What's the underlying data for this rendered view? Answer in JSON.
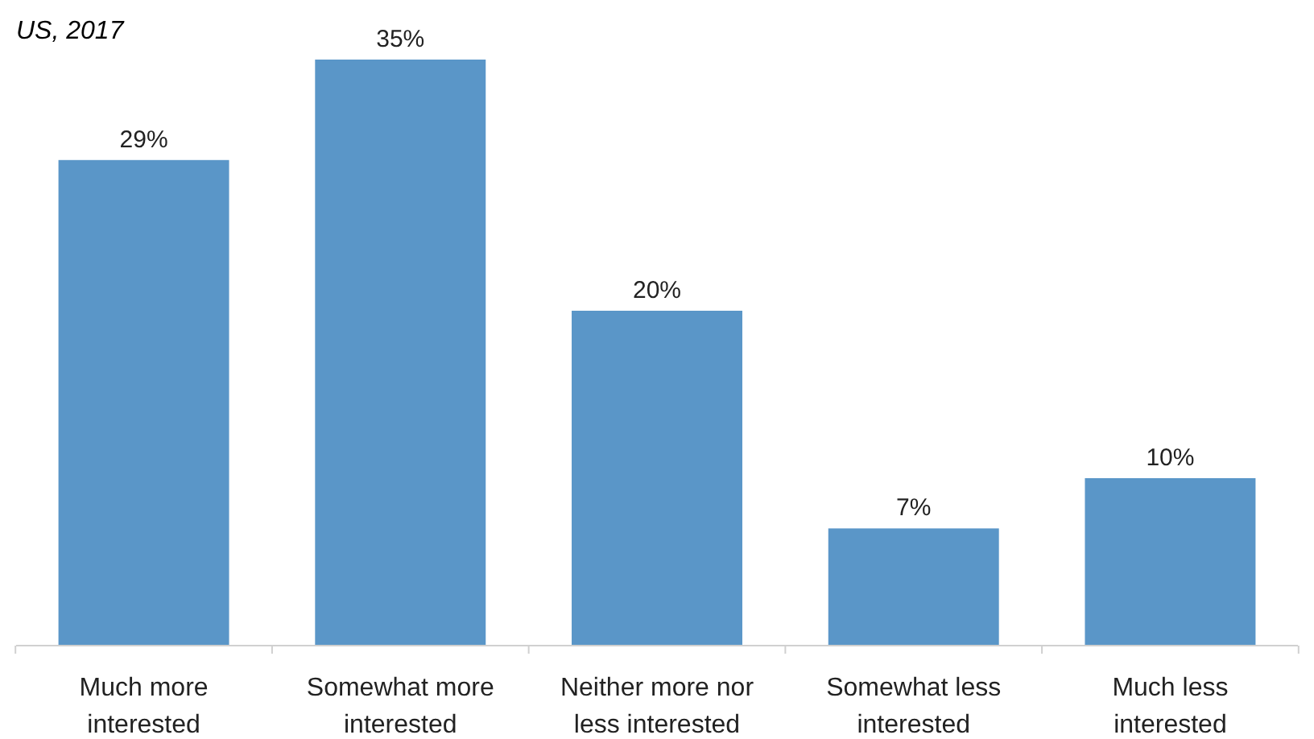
{
  "chart_data": {
    "type": "bar",
    "subtitle": "US, 2017",
    "categories": [
      "Much more interested",
      "Somewhat more interested",
      "Neither more nor less interested",
      "Somewhat less interested",
      "Much less interested"
    ],
    "values": [
      29,
      35,
      20,
      7,
      10
    ],
    "color": "#5a96c8",
    "value_labels": [
      "29%",
      "35%",
      "20%",
      "7%",
      "10%"
    ],
    "ylim": [
      0,
      35
    ],
    "tick_labels": "x"
  }
}
